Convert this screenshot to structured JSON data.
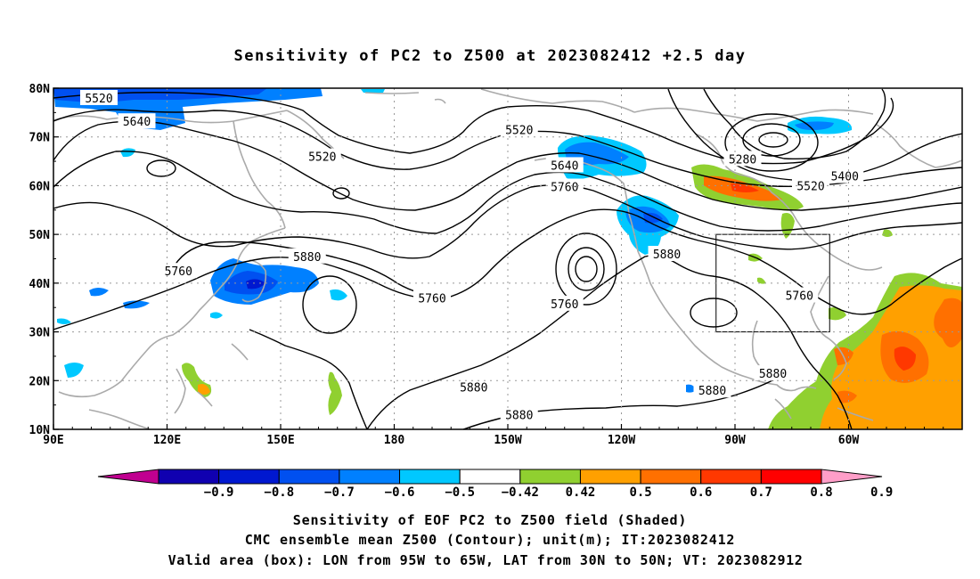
{
  "title": "Sensitivity of PC2 to Z500 at 2023082412 +2.5 day",
  "lat_labels": [
    "80N",
    "70N",
    "60N",
    "50N",
    "40N",
    "30N",
    "20N",
    "10N"
  ],
  "lon_labels": [
    "90E",
    "120E",
    "150E",
    "180",
    "150W",
    "120W",
    "90W",
    "60W"
  ],
  "contour_labels": [
    {
      "text": "5520",
      "lon": 102,
      "lat": 78.0
    },
    {
      "text": "5640",
      "lon": 112,
      "lat": 73.2
    },
    {
      "text": "5520",
      "lon": 161,
      "lat": 66.0
    },
    {
      "text": "5520",
      "lon": 213,
      "lat": 71.5
    },
    {
      "text": "5640",
      "lon": 225,
      "lat": 64.2
    },
    {
      "text": "5760",
      "lon": 225,
      "lat": 59.8
    },
    {
      "text": "5280",
      "lon": 272,
      "lat": 65.5
    },
    {
      "text": "5400",
      "lon": 299,
      "lat": 62.0
    },
    {
      "text": "5520",
      "lon": 290,
      "lat": 60.0
    },
    {
      "text": "5880",
      "lon": 157,
      "lat": 45.5
    },
    {
      "text": "5760",
      "lon": 123,
      "lat": 42.5
    },
    {
      "text": "5760",
      "lon": 190,
      "lat": 37.0
    },
    {
      "text": "5760",
      "lon": 225,
      "lat": 35.8
    },
    {
      "text": "5880",
      "lon": 252,
      "lat": 46.0
    },
    {
      "text": "5760",
      "lon": 287,
      "lat": 37.5
    },
    {
      "text": "5880",
      "lon": 280,
      "lat": 21.5
    },
    {
      "text": "5880",
      "lon": 264,
      "lat": 18.0
    },
    {
      "text": "5880",
      "lon": 201,
      "lat": 18.7
    },
    {
      "text": "5880",
      "lon": 213,
      "lat": 13.0
    }
  ],
  "valid_box": {
    "lon_min": 265,
    "lon_max": 295,
    "lat_min": 30,
    "lat_max": 50
  },
  "colorbar": {
    "colors": [
      "#c00090",
      "#1000b0",
      "#0018d0",
      "#0050f0",
      "#0080ff",
      "#00c8ff",
      "#ffffff",
      "#90d030",
      "#ffa000",
      "#ff7000",
      "#ff3800",
      "#ff0000",
      "#ff9ec8"
    ],
    "labels": [
      "−0.9",
      "−0.8",
      "−0.7",
      "−0.6",
      "−0.5",
      "−0.42",
      "0.42",
      "0.5",
      "0.6",
      "0.7",
      "0.8",
      "0.9"
    ]
  },
  "captions": [
    "Sensitivity of EOF PC2 to Z500 field (Shaded)",
    "CMC ensemble mean Z500 (Contour); unit(m); IT:2023082412",
    "Valid area (box): LON from 95W to 65W, LAT from 30N to 50N; VT: 2023082912"
  ]
}
